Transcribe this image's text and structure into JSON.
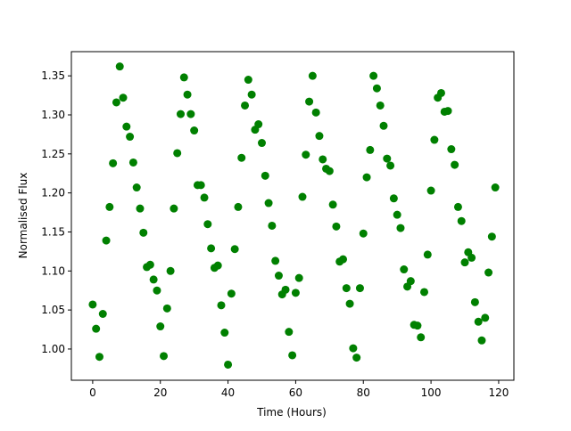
{
  "chart_data": {
    "type": "scatter",
    "x_label": "Time (Hours)",
    "y_label": "Normalised Flux",
    "x": [
      0,
      1,
      2,
      3,
      4,
      5,
      6,
      7,
      8,
      9,
      10,
      11,
      12,
      13,
      14,
      15,
      16,
      17,
      18,
      19,
      20,
      21,
      22,
      23,
      24,
      25,
      26,
      27,
      28,
      29,
      30,
      31,
      32,
      33,
      34,
      35,
      36,
      37,
      38,
      39,
      40,
      41,
      42,
      43,
      44,
      45,
      46,
      47,
      48,
      49,
      50,
      51,
      52,
      53,
      54,
      55,
      56,
      57,
      58,
      59,
      60,
      61,
      62,
      63,
      64,
      65,
      66,
      67,
      68,
      69,
      70,
      71,
      72,
      73,
      74,
      75,
      76,
      77,
      78,
      79,
      80,
      81,
      82,
      83,
      84,
      85,
      86,
      87,
      88,
      89,
      90,
      91,
      92,
      93,
      94,
      95,
      96,
      97,
      98,
      99,
      100,
      101,
      102,
      103,
      104,
      105,
      106,
      107,
      108,
      109,
      110,
      111,
      112,
      113,
      114,
      115,
      116,
      117,
      118,
      119
    ],
    "series": [
      {
        "name": "Flux",
        "color": "#008000",
        "values": [
          1.057,
          1.026,
          0.99,
          1.045,
          1.139,
          1.182,
          1.238,
          1.316,
          1.362,
          1.322,
          1.285,
          1.272,
          1.239,
          1.207,
          1.18,
          1.149,
          1.105,
          1.108,
          1.089,
          1.075,
          1.029,
          0.991,
          1.052,
          1.1,
          1.18,
          1.251,
          1.301,
          1.348,
          1.326,
          1.301,
          1.28,
          1.21,
          1.21,
          1.194,
          1.16,
          1.129,
          1.104,
          1.107,
          1.056,
          1.021,
          0.98,
          1.071,
          1.128,
          1.182,
          1.245,
          1.312,
          1.345,
          1.326,
          1.281,
          1.288,
          1.264,
          1.222,
          1.187,
          1.158,
          1.113,
          1.094,
          1.07,
          1.076,
          1.022,
          0.992,
          1.072,
          1.091,
          1.195,
          1.249,
          1.317,
          1.35,
          1.303,
          1.273,
          1.243,
          1.231,
          1.228,
          1.185,
          1.157,
          1.112,
          1.115,
          1.078,
          1.058,
          1.001,
          0.989,
          1.078,
          1.148,
          1.22,
          1.255,
          1.35,
          1.334,
          1.312,
          1.286,
          1.244,
          1.235,
          1.193,
          1.172,
          1.155,
          1.102,
          1.08,
          1.087,
          1.031,
          1.03,
          1.015,
          1.073,
          1.121,
          1.203,
          1.268,
          1.322,
          1.328,
          1.304,
          1.305,
          1.256,
          1.236,
          1.182,
          1.164,
          1.111,
          1.124,
          1.117,
          1.06,
          1.035,
          1.011,
          1.04,
          1.098,
          1.144,
          1.207
        ]
      }
    ],
    "xlim": [
      -6.3,
      124.5
    ],
    "ylim": [
      0.96,
      1.381
    ],
    "xticks": [
      0,
      20,
      40,
      60,
      80,
      100,
      120
    ],
    "yticks": [
      {
        "value": 1,
        "label": "1.00"
      },
      1.05,
      {
        "value": 1.1,
        "label": "1.10"
      },
      1.15,
      {
        "value": 1.2,
        "label": "1.20"
      },
      1.25,
      {
        "value": 1.3,
        "label": "1.30"
      },
      1.35
    ],
    "grid": false
  }
}
